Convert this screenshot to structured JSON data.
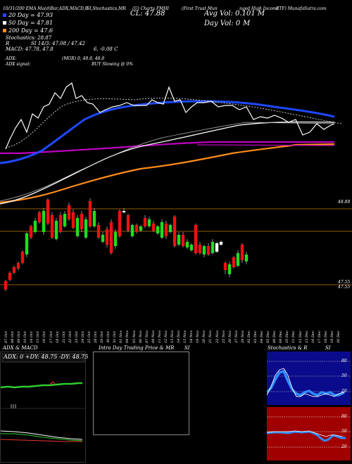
{
  "header": {
    "top_line": "10/31/200 EMA Ma(d)Bar,ADX,MACD,R",
    "si_stoch": "SI,Stochastics,MR",
    "chart_link": "(U) Charts FMHI",
    "ticker_desc": "(First Trust Mun",
    "fund_desc": "nged High Income",
    "etf": "ETF) MunafaSutra.com",
    "cl": "CL: 47.88",
    "avg_vol": "Avg Vol: 0.101 M",
    "day_vol": "Day Vol: 0",
    "day_vol_unit": "M",
    "ema20": "20 Day = 47.93",
    "ema50": "50 Day = 47.81",
    "ema200": "200 Day = 47.6",
    "stochastics": "Stochastics: 28.87",
    "si_line_1": "R",
    "si_values": "SI 14/3: 47.08 / 47.42",
    "macd": "MACD: 47.78, 47.8",
    "macd_tail": "6, -0.08 C",
    "adx": "ADX:",
    "adx_vals": "(MGR) 0, 48.8, 48.8",
    "adx_signal": "ADX signal:",
    "buy_selling": "BUY Slowing @ 0%"
  },
  "price_axis": {
    "top_label": "48.89",
    "bottom_label_1": "47.55",
    "bottom_label_2": "47.55"
  },
  "dates": [
    "07 Oct",
    "08 Oct",
    "09 Oct",
    "10 Oct",
    "14 Oct",
    "15 Oct",
    "16 Oct",
    "17 Oct",
    "18 Oct",
    "21 Oct",
    "22 Oct",
    "23 Oct",
    "24 Oct",
    "25 Oct",
    "28 Oct",
    "29 Oct",
    "30 Oct",
    "31 Oct",
    "01 Nov",
    "04 Nov",
    "05 Nov",
    "06 Nov",
    "07 Nov",
    "08 Nov",
    "11 Nov",
    "12 Nov",
    "13 Nov",
    "14 Nov",
    "15 Nov",
    "18 Nov",
    "19 Nov",
    "20 Nov",
    "21 Nov",
    "22 Nov",
    "25 Nov",
    "26 Nov",
    "27 Nov",
    "29 Nov",
    "02 Dec",
    "03 Dec",
    "04 Dec",
    "05 Dec",
    "06 Dec",
    "09 Dec",
    "10 Dec",
    "11 Dec",
    "12 Dec",
    "13 Dec",
    "16 Dec",
    "17 Dec",
    "18 Dec",
    "19 Dec",
    "20 Dec"
  ],
  "bottom_panels": {
    "adx_title": "ADX & MACD",
    "adx_box_text": "ADX: 0  +DY: 48.75  -DY: 48.75",
    "intraday_title": "Intra Day Trading Price & MR",
    "intraday_si": "SI",
    "stoch_title": "Stochastics & R",
    "stoch_si": "SI",
    "stoch_ticks": [
      "80",
      "50",
      "20"
    ],
    "rsi_ticks": [
      "80",
      "50",
      "20"
    ]
  },
  "colors": {
    "ema20": "#1e48ff",
    "ema50": "#ffffff",
    "ema200": "#ff8c1a",
    "purple_line": "#c000c0",
    "bull": "#1fdd1f",
    "bear": "#ee1111",
    "stoch_bg": "#0a0a8c",
    "rsi_bg": "#a00000"
  }
}
